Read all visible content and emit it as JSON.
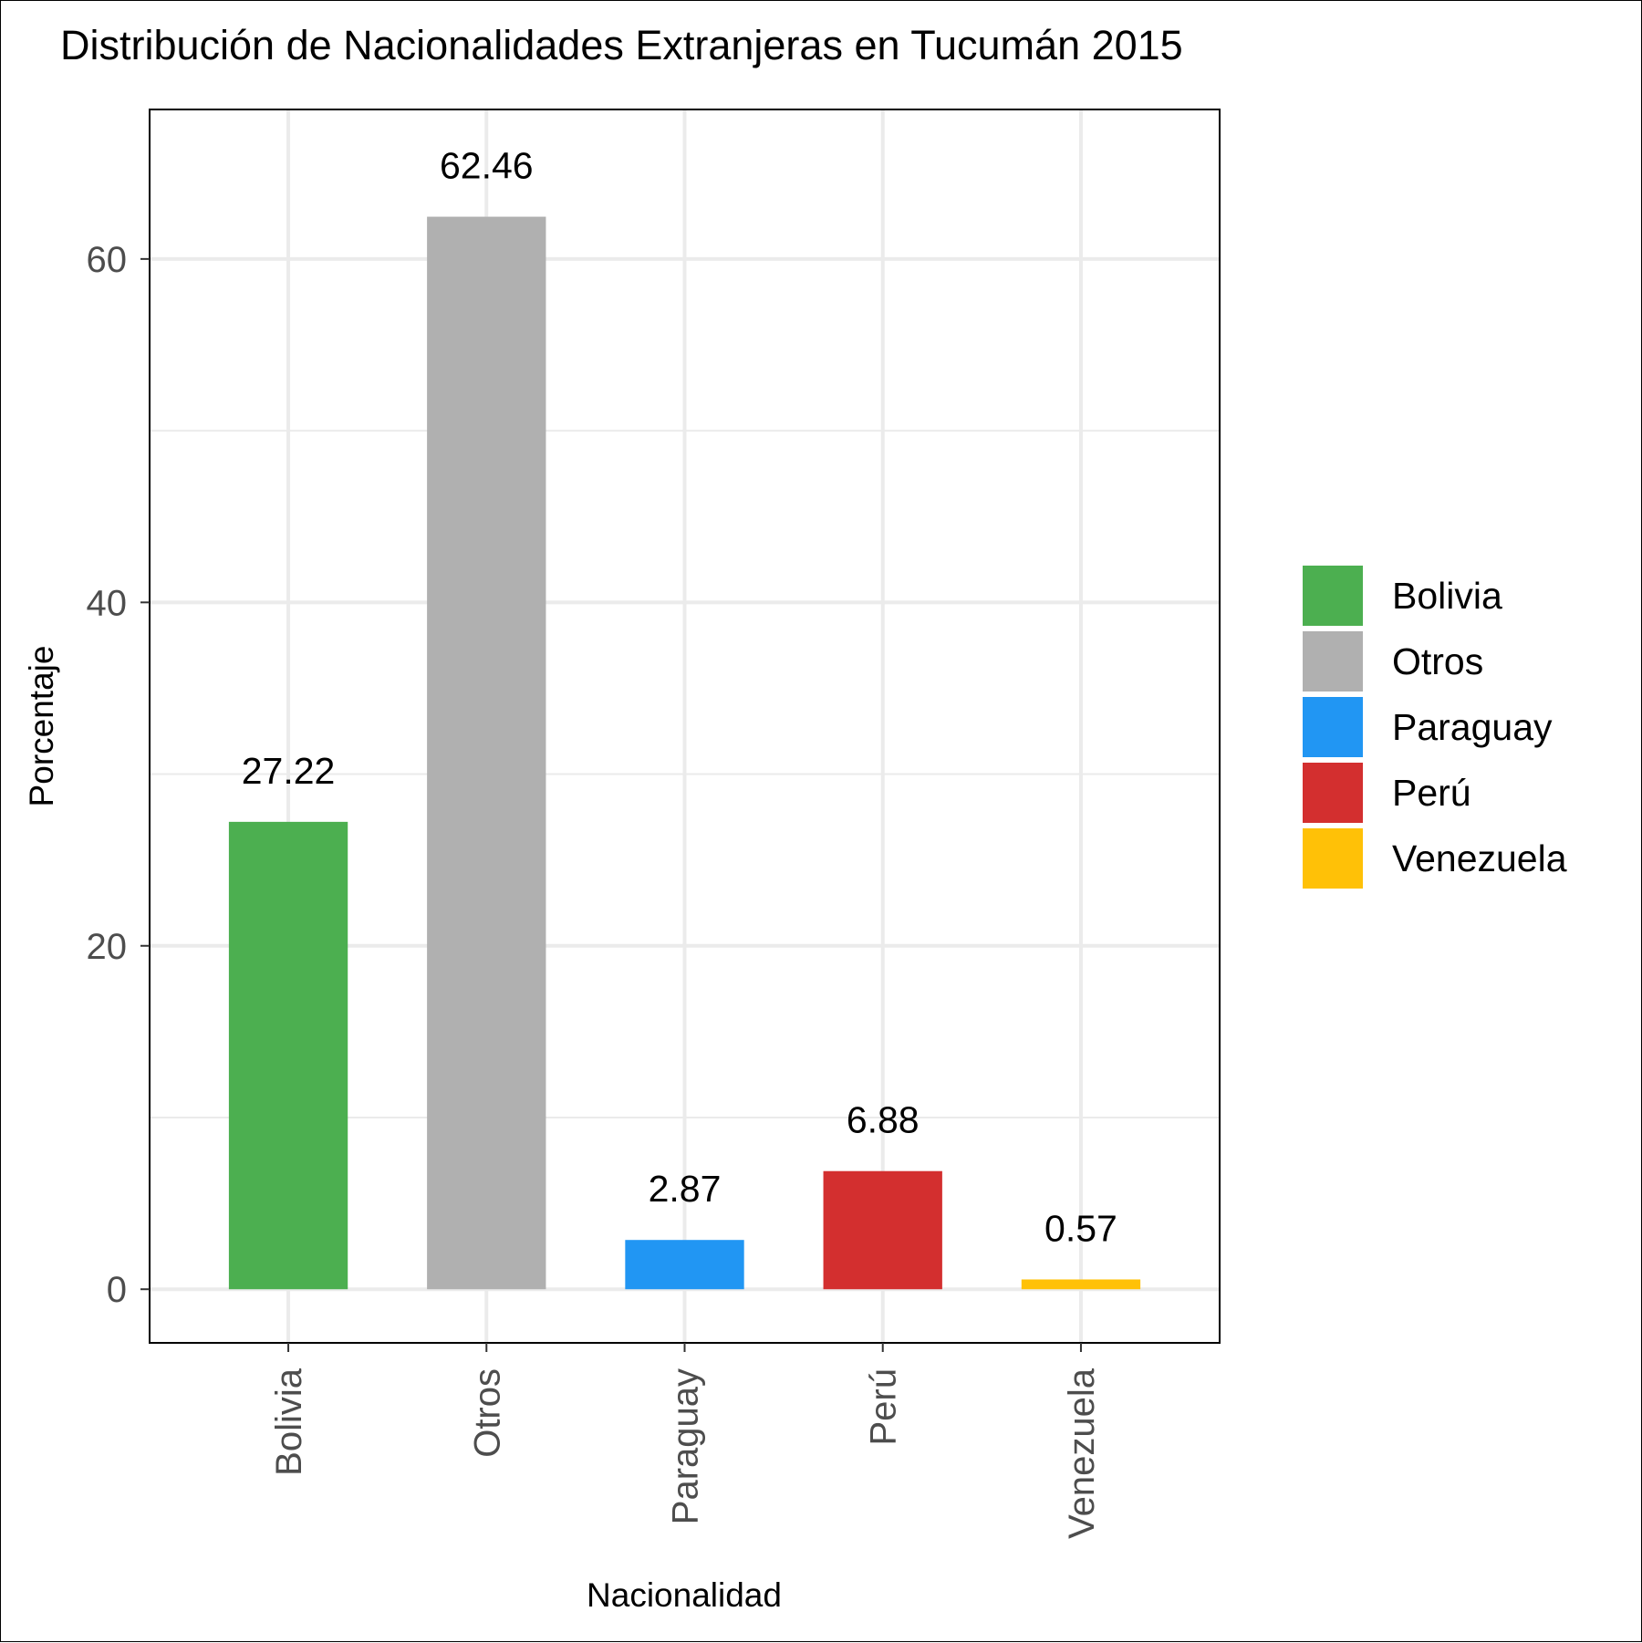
{
  "chart_data": {
    "type": "bar",
    "title": "Distribución de Nacionalidades Extranjeras en Tucumán 2015",
    "xlabel": "Nacionalidad",
    "ylabel": "Porcentaje",
    "categories": [
      "Bolivia",
      "Otros",
      "Paraguay",
      "Perú",
      "Venezuela"
    ],
    "values": [
      27.22,
      62.46,
      2.87,
      6.88,
      0.57
    ],
    "data_labels": [
      "27.22",
      "62.46",
      "2.87",
      "6.88",
      "0.57"
    ],
    "colors": [
      "#4caf50",
      "#b0b0b0",
      "#2196f3",
      "#d32f2f",
      "#ffc107"
    ],
    "y_ticks": [
      0,
      20,
      40,
      60
    ],
    "ylim": [
      -3.123,
      68.706
    ],
    "grid": true,
    "legend": {
      "placement": "right",
      "entries": [
        "Bolivia",
        "Otros",
        "Paraguay",
        "Perú",
        "Venezuela"
      ]
    }
  }
}
